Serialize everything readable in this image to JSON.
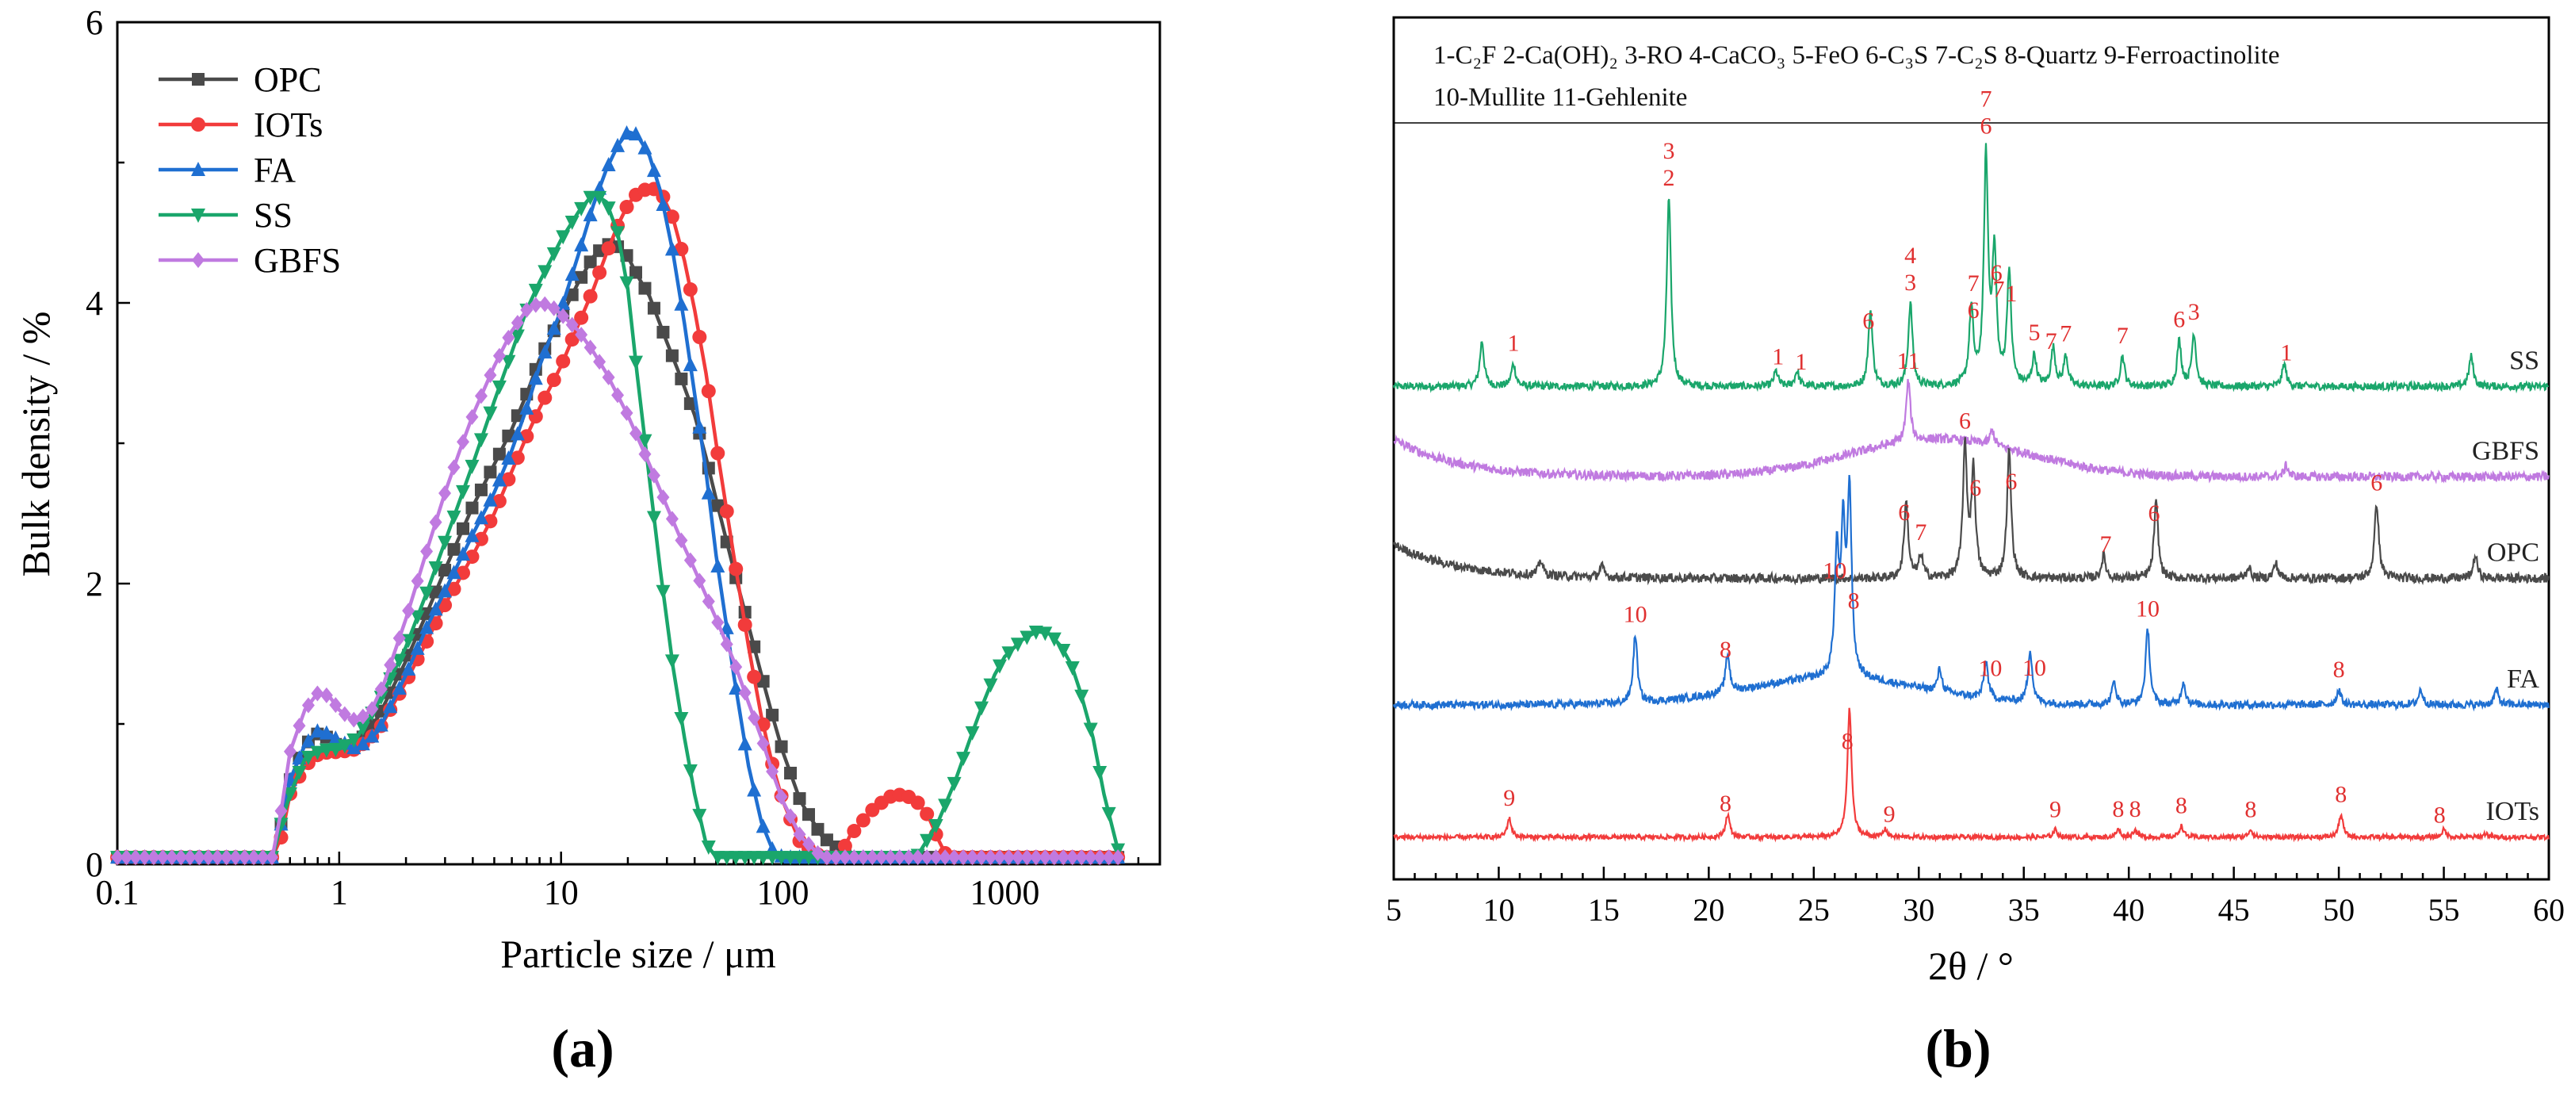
{
  "colors": {
    "OPC": "#4a4a4a",
    "IOTs": "#f23b3b",
    "FA": "#1f6fd1",
    "SS": "#1aa66b",
    "GBFS": "#c07ae0",
    "peak_label": "#e03030",
    "text": "#222222"
  },
  "panel_labels": {
    "a": "(a)",
    "b": "(b)"
  },
  "chart_data": [
    {
      "id": "a",
      "type": "line",
      "x_scale": "log",
      "xlabel": "Particle size / μm",
      "ylabel": "Bulk density / %",
      "xlim": [
        0.1,
        5000
      ],
      "ylim": [
        0,
        6
      ],
      "xticks": [
        0.1,
        1,
        10,
        100,
        1000
      ],
      "xtick_labels": [
        "0.1",
        "1",
        "10",
        "100",
        "1000"
      ],
      "yticks": [
        0,
        2,
        4,
        6
      ],
      "ytick_labels": [
        "0",
        "2",
        "4",
        "6"
      ],
      "legend": [
        "OPC",
        "IOTs",
        "FA",
        "SS",
        "GBFS"
      ],
      "legend_position": "top-left",
      "series": [
        {
          "name": "OPC",
          "marker": "square",
          "x": [
            0.1,
            0.5,
            0.55,
            0.6,
            0.7,
            0.8,
            0.9,
            1.0,
            1.2,
            1.5,
            2,
            2.5,
            3,
            4,
            5,
            6,
            7,
            8,
            10,
            12,
            14,
            16,
            18,
            20,
            22,
            25,
            30,
            35,
            40,
            45,
            50,
            60,
            70,
            80,
            90,
            100,
            120,
            150,
            200,
            3300
          ],
          "y": [
            0.05,
            0.05,
            0.3,
            0.6,
            0.85,
            0.93,
            0.9,
            0.83,
            0.85,
            1.05,
            1.45,
            1.8,
            2.1,
            2.55,
            2.85,
            3.1,
            3.35,
            3.6,
            3.9,
            4.15,
            4.33,
            4.42,
            4.4,
            4.33,
            4.2,
            4.05,
            3.72,
            3.45,
            3.2,
            2.9,
            2.6,
            2.1,
            1.7,
            1.35,
            1.05,
            0.8,
            0.45,
            0.2,
            0.05,
            0.05
          ]
        },
        {
          "name": "IOTs",
          "marker": "circle",
          "x": [
            0.1,
            0.5,
            0.55,
            0.6,
            0.7,
            0.8,
            0.9,
            1.0,
            1.2,
            1.5,
            2,
            2.5,
            3,
            4,
            5,
            6,
            7,
            8,
            10,
            12,
            14,
            16,
            18,
            20,
            22,
            25,
            28,
            32,
            36,
            40,
            45,
            50,
            60,
            70,
            80,
            90,
            100,
            120,
            150,
            180,
            200,
            250,
            300,
            350,
            400,
            450,
            500,
            550,
            3300
          ],
          "y": [
            0.05,
            0.05,
            0.2,
            0.5,
            0.7,
            0.78,
            0.8,
            0.8,
            0.82,
            0.95,
            1.3,
            1.6,
            1.85,
            2.2,
            2.5,
            2.8,
            3.05,
            3.25,
            3.55,
            3.85,
            4.1,
            4.35,
            4.55,
            4.7,
            4.78,
            4.82,
            4.8,
            4.6,
            4.3,
            3.95,
            3.5,
            3.0,
            2.2,
            1.55,
            1.05,
            0.7,
            0.45,
            0.15,
            0.05,
            0.05,
            0.2,
            0.38,
            0.48,
            0.5,
            0.45,
            0.35,
            0.18,
            0.05,
            0.05
          ]
        },
        {
          "name": "FA",
          "marker": "triangle-up",
          "x": [
            0.1,
            0.5,
            0.55,
            0.6,
            0.7,
            0.8,
            0.9,
            1.0,
            1.2,
            1.5,
            2,
            2.5,
            3,
            4,
            5,
            6,
            7,
            8,
            10,
            12,
            14,
            16,
            18,
            20,
            22,
            25,
            28,
            32,
            36,
            40,
            45,
            50,
            60,
            70,
            80,
            90,
            100,
            3300
          ],
          "y": [
            0.05,
            0.05,
            0.3,
            0.6,
            0.85,
            0.95,
            0.93,
            0.88,
            0.82,
            0.95,
            1.35,
            1.7,
            1.95,
            2.35,
            2.65,
            2.95,
            3.25,
            3.55,
            3.95,
            4.35,
            4.7,
            4.95,
            5.12,
            5.22,
            5.2,
            5.05,
            4.8,
            4.35,
            3.85,
            3.35,
            2.8,
            2.2,
            1.35,
            0.7,
            0.3,
            0.1,
            0.05,
            0.05
          ]
        },
        {
          "name": "SS",
          "marker": "triangle-down",
          "x": [
            0.1,
            0.5,
            0.55,
            0.6,
            0.7,
            0.8,
            0.9,
            1.0,
            1.2,
            1.5,
            2,
            2.5,
            3,
            4,
            5,
            6,
            7,
            8,
            10,
            12,
            14,
            16,
            18,
            20,
            22,
            25,
            28,
            32,
            36,
            40,
            45,
            50,
            60,
            200,
            400,
            500,
            600,
            700,
            800,
            900,
            1000,
            1200,
            1400,
            1600,
            1800,
            2000,
            2200,
            2500,
            2800,
            3300
          ],
          "y": [
            0.05,
            0.05,
            0.3,
            0.5,
            0.75,
            0.8,
            0.82,
            0.82,
            0.9,
            1.15,
            1.55,
            1.95,
            2.3,
            2.85,
            3.3,
            3.65,
            3.95,
            4.15,
            4.45,
            4.65,
            4.78,
            4.72,
            4.5,
            4.1,
            3.5,
            2.75,
            2.1,
            1.4,
            0.9,
            0.5,
            0.15,
            0.05,
            0.05,
            0.05,
            0.05,
            0.3,
            0.6,
            0.9,
            1.15,
            1.35,
            1.48,
            1.6,
            1.66,
            1.64,
            1.55,
            1.42,
            1.22,
            0.9,
            0.5,
            0.05
          ]
        },
        {
          "name": "GBFS",
          "marker": "diamond",
          "x": [
            0.1,
            0.5,
            0.55,
            0.6,
            0.7,
            0.8,
            0.9,
            1.0,
            1.1,
            1.2,
            1.4,
            1.6,
            2,
            2.5,
            3,
            3.5,
            4,
            5,
            6,
            7,
            8,
            9,
            10,
            12,
            14,
            16,
            20,
            25,
            30,
            35,
            40,
            50,
            60,
            70,
            80,
            90,
            100,
            120,
            150,
            3300
          ],
          "y": [
            0.05,
            0.05,
            0.4,
            0.8,
            1.1,
            1.22,
            1.2,
            1.1,
            1.05,
            1.02,
            1.1,
            1.3,
            1.75,
            2.25,
            2.65,
            2.95,
            3.2,
            3.55,
            3.8,
            3.95,
            4.0,
            3.98,
            3.92,
            3.8,
            3.65,
            3.5,
            3.2,
            2.85,
            2.55,
            2.3,
            2.1,
            1.75,
            1.45,
            1.15,
            0.9,
            0.65,
            0.45,
            0.2,
            0.05,
            0.05
          ]
        }
      ]
    },
    {
      "id": "b",
      "type": "line",
      "subtype": "xrd",
      "xlabel": "2θ / °",
      "xlim": [
        5,
        60
      ],
      "xticks": [
        5,
        10,
        15,
        20,
        25,
        30,
        35,
        40,
        45,
        50,
        55,
        60
      ],
      "xtick_labels": [
        "5",
        "10",
        "15",
        "20",
        "25",
        "30",
        "35",
        "40",
        "45",
        "50",
        "55",
        "60"
      ],
      "legend_line1": "1-C₂F   2-Ca(OH)₂  3-RO  4-CaCO₃  5-FeO  6-C₃S  7-C₂S  8-Quartz  9-Ferroactinolite",
      "legend_line2": "10-Mullite  11-Gehlenite",
      "series": [
        {
          "name": "SS",
          "baseline": 0.655,
          "noise": 0.005,
          "peaks": [
            [
              9.2,
              0.06
            ],
            [
              10.7,
              0.03
            ],
            [
              18.1,
              0.25
            ],
            [
              23.2,
              0.02
            ],
            [
              24.2,
              0.02
            ],
            [
              27.7,
              0.1
            ],
            [
              29.6,
              0.11
            ],
            [
              32.5,
              0.1
            ],
            [
              33.2,
              0.3
            ],
            [
              33.6,
              0.17
            ],
            [
              34.3,
              0.15
            ],
            [
              35.5,
              0.04
            ],
            [
              36.4,
              0.05
            ],
            [
              37.0,
              0.04
            ],
            [
              39.7,
              0.04
            ],
            [
              42.4,
              0.06
            ],
            [
              43.1,
              0.07
            ],
            [
              47.4,
              0.03
            ],
            [
              56.3,
              0.04
            ]
          ]
        },
        {
          "name": "GBFS",
          "baseline": 0.535,
          "noise": 0.006,
          "hump": [
            31,
            0.05,
            6
          ],
          "start_rise": 0.05,
          "peaks": [
            [
              29.5,
              0.08
            ],
            [
              33.5,
              0.02
            ],
            [
              47.5,
              0.015
            ]
          ]
        },
        {
          "name": "OPC",
          "baseline": 0.4,
          "noise": 0.006,
          "start_rise": 0.045,
          "peaks": [
            [
              12.0,
              0.02
            ],
            [
              14.9,
              0.015
            ],
            [
              29.4,
              0.1
            ],
            [
              30.1,
              0.03
            ],
            [
              32.2,
              0.17
            ],
            [
              32.6,
              0.14
            ],
            [
              34.3,
              0.17
            ],
            [
              38.8,
              0.03
            ],
            [
              41.3,
              0.1
            ],
            [
              45.7,
              0.015
            ],
            [
              47.0,
              0.02
            ],
            [
              51.8,
              0.1
            ],
            [
              56.5,
              0.03
            ]
          ]
        },
        {
          "name": "FA",
          "baseline": 0.232,
          "noise": 0.005,
          "hump": [
            26,
            0.035,
            6
          ],
          "peaks": [
            [
              16.5,
              0.09
            ],
            [
              20.9,
              0.05
            ],
            [
              26.1,
              0.16
            ],
            [
              26.4,
              0.18
            ],
            [
              26.7,
              0.24
            ],
            [
              31.0,
              0.03
            ],
            [
              33.2,
              0.05
            ],
            [
              35.3,
              0.07
            ],
            [
              39.3,
              0.03
            ],
            [
              40.9,
              0.1
            ],
            [
              42.6,
              0.03
            ],
            [
              50.0,
              0.02
            ],
            [
              53.9,
              0.02
            ],
            [
              57.5,
              0.02
            ]
          ]
        },
        {
          "name": "IOTs",
          "baseline": 0.056,
          "noise": 0.003,
          "peaks": [
            [
              10.5,
              0.025
            ],
            [
              20.9,
              0.03
            ],
            [
              26.7,
              0.17
            ],
            [
              28.4,
              0.01
            ],
            [
              36.5,
              0.01
            ],
            [
              39.5,
              0.01
            ],
            [
              40.3,
              0.01
            ],
            [
              42.5,
              0.015
            ],
            [
              45.8,
              0.01
            ],
            [
              50.1,
              0.03
            ],
            [
              55.0,
              0.01
            ],
            [
              57.0,
              0.005
            ]
          ]
        }
      ],
      "peak_labels": [
        {
          "s": "SS",
          "x": 10.7,
          "t": "1"
        },
        {
          "s": "SS",
          "x": 18.1,
          "t": "2"
        },
        {
          "s": "SS",
          "x": 18.1,
          "t": "3",
          "row": 1
        },
        {
          "s": "SS",
          "x": 23.3,
          "t": "1"
        },
        {
          "s": "SS",
          "x": 24.4,
          "t": "1"
        },
        {
          "s": "SS",
          "x": 27.6,
          "t": "6"
        },
        {
          "s": "SS",
          "x": 29.6,
          "t": "3"
        },
        {
          "s": "SS",
          "x": 29.6,
          "t": "4",
          "row": 1
        },
        {
          "s": "SS",
          "x": 32.6,
          "t": "6"
        },
        {
          "s": "SS",
          "x": 32.6,
          "t": "7",
          "row": 1
        },
        {
          "s": "SS",
          "x": 33.2,
          "t": "6"
        },
        {
          "s": "SS",
          "x": 33.2,
          "t": "7",
          "row": 1
        },
        {
          "s": "SS",
          "x": 33.7,
          "t": "6"
        },
        {
          "s": "SS",
          "x": 33.8,
          "t": "7",
          "row": 1
        },
        {
          "s": "SS",
          "x": 34.4,
          "t": "1"
        },
        {
          "s": "SS",
          "x": 35.5,
          "t": "5"
        },
        {
          "s": "SS",
          "x": 36.3,
          "t": "7"
        },
        {
          "s": "SS",
          "x": 37.0,
          "t": "7"
        },
        {
          "s": "SS",
          "x": 39.7,
          "t": "7"
        },
        {
          "s": "SS",
          "x": 42.4,
          "t": "6"
        },
        {
          "s": "SS",
          "x": 43.1,
          "t": "3"
        },
        {
          "s": "SS",
          "x": 47.5,
          "t": "1"
        },
        {
          "s": "GBFS",
          "x": 29.5,
          "t": "11"
        },
        {
          "s": "OPC",
          "x": 29.3,
          "t": "6"
        },
        {
          "s": "OPC",
          "x": 30.1,
          "t": "7"
        },
        {
          "s": "OPC",
          "x": 32.2,
          "t": "6"
        },
        {
          "s": "OPC",
          "x": 32.7,
          "t": "6"
        },
        {
          "s": "OPC",
          "x": 34.4,
          "t": "6"
        },
        {
          "s": "OPC",
          "x": 38.9,
          "t": "7"
        },
        {
          "s": "OPC",
          "x": 41.2,
          "t": "6"
        },
        {
          "s": "OPC",
          "x": 51.8,
          "t": "6"
        },
        {
          "s": "FA",
          "x": 16.5,
          "t": "10"
        },
        {
          "s": "FA",
          "x": 20.8,
          "t": "8"
        },
        {
          "s": "FA",
          "x": 26.0,
          "t": "10"
        },
        {
          "s": "FA",
          "x": 26.9,
          "t": "8"
        },
        {
          "s": "FA",
          "x": 33.4,
          "t": "10"
        },
        {
          "s": "FA",
          "x": 35.5,
          "t": "10"
        },
        {
          "s": "FA",
          "x": 40.9,
          "t": "10"
        },
        {
          "s": "FA",
          "x": 50.0,
          "t": "8"
        },
        {
          "s": "IOTs",
          "x": 10.5,
          "t": "9"
        },
        {
          "s": "IOTs",
          "x": 20.8,
          "t": "8"
        },
        {
          "s": "IOTs",
          "x": 26.6,
          "t": "8"
        },
        {
          "s": "IOTs",
          "x": 28.6,
          "t": "9"
        },
        {
          "s": "IOTs",
          "x": 36.5,
          "t": "9"
        },
        {
          "s": "IOTs",
          "x": 39.5,
          "t": "8"
        },
        {
          "s": "IOTs",
          "x": 40.3,
          "t": "8"
        },
        {
          "s": "IOTs",
          "x": 42.5,
          "t": "8"
        },
        {
          "s": "IOTs",
          "x": 45.8,
          "t": "8"
        },
        {
          "s": "IOTs",
          "x": 50.1,
          "t": "8"
        },
        {
          "s": "IOTs",
          "x": 54.8,
          "t": "8"
        }
      ]
    }
  ]
}
